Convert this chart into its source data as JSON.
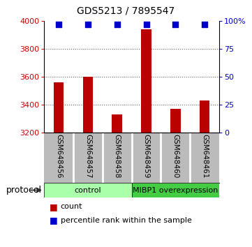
{
  "title": "GDS5213 / 7895547",
  "samples": [
    "GSM648456",
    "GSM648457",
    "GSM648458",
    "GSM648459",
    "GSM648460",
    "GSM648461"
  ],
  "counts": [
    3560,
    3600,
    3330,
    3940,
    3370,
    3430
  ],
  "percentile_ranks": [
    97,
    97,
    97,
    97,
    97,
    97
  ],
  "ylim_left": [
    3200,
    4000
  ],
  "ylim_right": [
    0,
    100
  ],
  "yticks_left": [
    3200,
    3400,
    3600,
    3800,
    4000
  ],
  "yticks_right": [
    0,
    25,
    50,
    75,
    100
  ],
  "ytick_labels_right": [
    "0",
    "25",
    "50",
    "75",
    "100%"
  ],
  "bar_color": "#bb0000",
  "dot_color": "#0000cc",
  "grid_color": "#666666",
  "bg_plot": "#ffffff",
  "bg_xtick": "#bbbbbb",
  "group_labels": [
    "control",
    "MIBP1 overexpression"
  ],
  "group_colors_light": "#aaffaa",
  "group_colors_dark": "#44cc44",
  "protocol_label": "protocol",
  "legend_count": "count",
  "legend_pct": "percentile rank within the sample",
  "bar_width": 0.35,
  "dot_size": 40,
  "left_tick_color": "#cc0000",
  "right_tick_color": "#0000cc",
  "title_fontsize": 10,
  "tick_fontsize": 8,
  "label_fontsize": 7.5,
  "group_fontsize": 8,
  "legend_fontsize": 8
}
